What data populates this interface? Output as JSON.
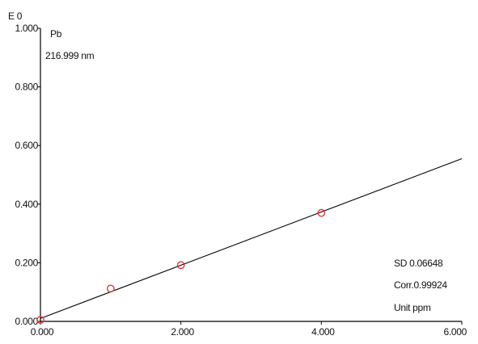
{
  "chart_data": {
    "type": "scatter",
    "axis_top_label": "E 0",
    "element": "Pb",
    "wavelength": "216.999 nm",
    "xlim": [
      0,
      6
    ],
    "ylim": [
      0,
      1
    ],
    "x_ticks": [
      "0.000",
      "2.000",
      "4.000",
      "6.000"
    ],
    "y_ticks": [
      "0.000",
      "0.200",
      "0.400",
      "0.600",
      "0.800",
      "1.000"
    ],
    "grid": false,
    "series": [
      {
        "points": [
          {
            "x": 0.0,
            "y": 0.005
          },
          {
            "x": 1.0,
            "y": 0.112
          },
          {
            "x": 2.0,
            "y": 0.192
          },
          {
            "x": 4.0,
            "y": 0.37
          }
        ],
        "color": "#e8343a",
        "marker": "circle-open"
      }
    ],
    "fit_line": {
      "x": [
        0,
        6
      ],
      "y": [
        0.01,
        0.555
      ],
      "color": "#000000"
    },
    "stats": {
      "sd": "SD  0.06648",
      "corr": "Corr.0.99924",
      "unit": "Unit ppm"
    }
  }
}
